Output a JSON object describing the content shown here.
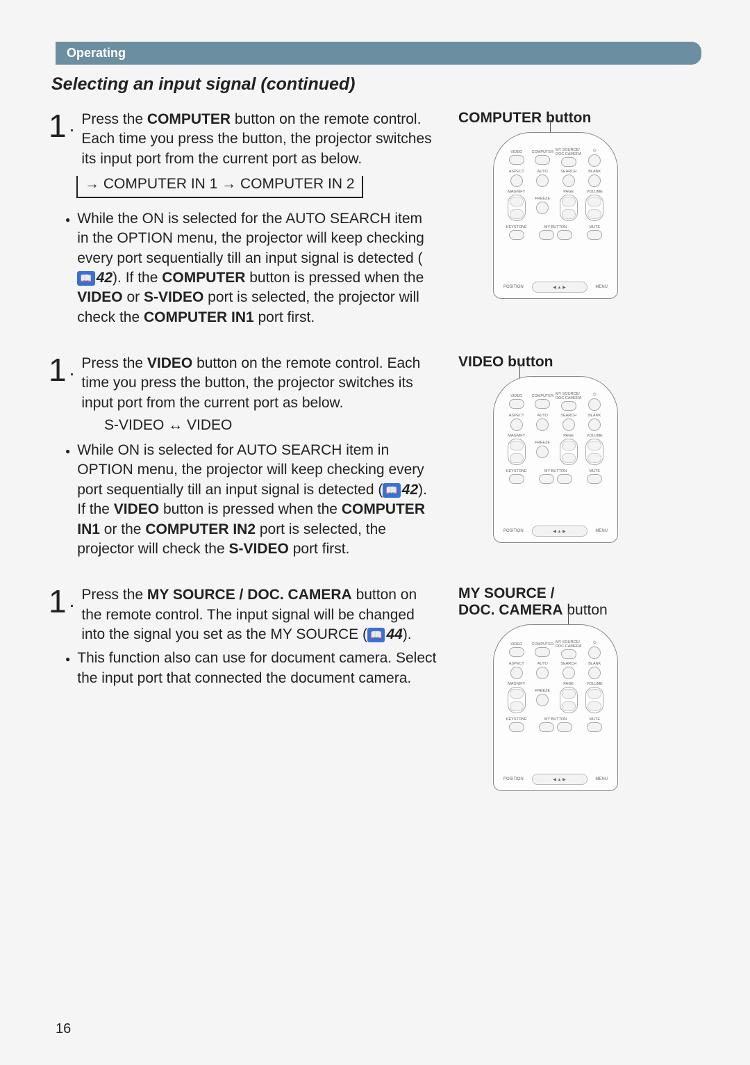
{
  "banner": "Operating",
  "sectionTitle": "Selecting an input signal (continued)",
  "blocks": [
    {
      "label": "COMPUTER button",
      "step": {
        "prefix": "Press the ",
        "bold1": "COMPUTER",
        "mid": " button on the remote control. Each time you press the button, the projector switches its input port from the current port as below."
      },
      "diagramBoxed": "→ COMPUTER IN 1 → COMPUTER IN 2",
      "bullet": {
        "t1": "While the ON is selected for the AUTO SEARCH item in the OPTION menu, the projector will keep checking every port sequentially till an input signal is detected (",
        "ref": "42",
        "t2": "). If the ",
        "b1": "COMPUTER",
        "t3": " button is pressed when the ",
        "b2": "VIDEO",
        "t4": " or ",
        "b3": "S-VIDEO",
        "t5": " port is selected, the projector will check the ",
        "b4": "COMPUTER IN1",
        "t6": " port first."
      }
    },
    {
      "label": "VIDEO button",
      "step": {
        "prefix": "Press the ",
        "bold1": "VIDEO",
        "mid": " button on the remote control. Each time you press the button, the projector switches its input port from the current port as below."
      },
      "diagramInline": "S-VIDEO ↔ VIDEO",
      "bullet": {
        "t1": "While ON is selected for AUTO SEARCH item in OPTION menu, the projector will keep checking every port sequentially till an input signal is detected (",
        "ref": "42",
        "t2": "). If the ",
        "b1": "VIDEO",
        "t3": " button is pressed when the ",
        "b2": "COMPUTER IN1",
        "t4": " or the ",
        "b3": "COMPUTER IN2",
        "t5": " port is selected, the projector will check the ",
        "b4": "S-VIDEO",
        "t6": " port first."
      }
    },
    {
      "label": "MY SOURCE / DOC. CAMERA button",
      "step": {
        "prefix": "Press the ",
        "bold1": "MY SOURCE / DOC. CAMERA",
        "mid": " button on the remote control. The input signal will be changed into the signal you set as the MY SOURCE (",
        "ref": "44",
        "after": ")."
      },
      "bulletSimple": "This function also can use for document camera. Select the input port that connected the document camera."
    }
  ],
  "remote": {
    "topRow": [
      "VIDEO",
      "COMPUTER",
      "MY SOURCE/\nDOC.CAMERA",
      ""
    ],
    "row2": [
      "ASPECT",
      "AUTO",
      "SEARCH",
      "BLANK"
    ],
    "row3l": "MAGNIFY",
    "row3r": "VOLUME",
    "row4": [
      "KEYSTONE",
      "MY BUTTON",
      "",
      "MUTE"
    ],
    "bottom": [
      "POSITION",
      "MENU"
    ]
  },
  "pageNum": "16"
}
